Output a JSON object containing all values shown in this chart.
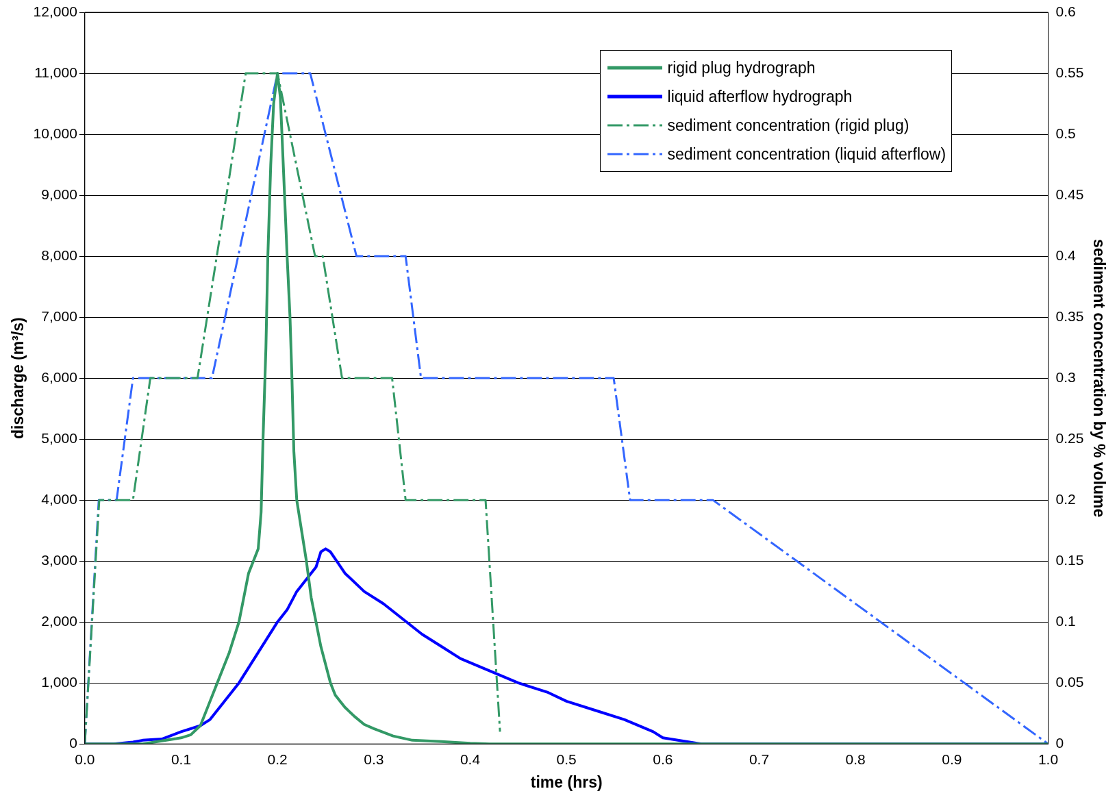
{
  "chart_data": {
    "type": "line",
    "xlabel": "time (hrs)",
    "ylabel": "discharge (m³/s)",
    "y2label": "sediment concentration by % volume",
    "xlim": [
      0,
      1
    ],
    "xticks": [
      {
        "value": 0,
        "label": "0.0"
      },
      {
        "value": 0.1,
        "label": "0.1"
      },
      {
        "value": 0.2,
        "label": "0.2"
      },
      {
        "value": 0.3,
        "label": "0.3"
      },
      {
        "value": 0.4,
        "label": "0.4"
      },
      {
        "value": 0.5,
        "label": "0.5"
      },
      {
        "value": 0.6,
        "label": "0.6"
      },
      {
        "value": 0.7,
        "label": "0.7"
      },
      {
        "value": 0.8,
        "label": "0.8"
      },
      {
        "value": 0.9,
        "label": "0.9"
      },
      {
        "value": 1,
        "label": "1.0"
      }
    ],
    "ylim": [
      0,
      12000
    ],
    "yticks": [
      {
        "value": 0,
        "label": "0"
      },
      {
        "value": 1000,
        "label": "1,000"
      },
      {
        "value": 2000,
        "label": "2,000"
      },
      {
        "value": 3000,
        "label": "3,000"
      },
      {
        "value": 4000,
        "label": "4,000"
      },
      {
        "value": 5000,
        "label": "5,000"
      },
      {
        "value": 6000,
        "label": "6,000"
      },
      {
        "value": 7000,
        "label": "7,000"
      },
      {
        "value": 8000,
        "label": "8,000"
      },
      {
        "value": 9000,
        "label": "9,000"
      },
      {
        "value": 10000,
        "label": "10,000"
      },
      {
        "value": 11000,
        "label": "11,000"
      },
      {
        "value": 12000,
        "label": "12,000"
      }
    ],
    "y2lim": [
      0,
      0.6
    ],
    "y2ticks": [
      0,
      0.05,
      0.1,
      0.15,
      0.2,
      0.25,
      0.3,
      0.35,
      0.4,
      0.45,
      0.5,
      0.55,
      0.6
    ],
    "grid": "y",
    "legend": "top right",
    "marker": "none",
    "series": [
      {
        "name": "rigid plug hydrograph",
        "color": "#339966",
        "line_style": "solid",
        "x": [
          0,
          0.06,
          0.08,
          0.1,
          0.11,
          0.12,
          0.13,
          0.14,
          0.15,
          0.16,
          0.165,
          0.17,
          0.175,
          0.18,
          0.183,
          0.185,
          0.188,
          0.19,
          0.193,
          0.196,
          0.2,
          0.203,
          0.206,
          0.21,
          0.213,
          0.215,
          0.217,
          0.22,
          0.225,
          0.23,
          0.235,
          0.24,
          0.245,
          0.25,
          0.255,
          0.26,
          0.27,
          0.28,
          0.29,
          0.3,
          0.32,
          0.34,
          0.37,
          0.4,
          0.42,
          1
        ],
        "values": [
          0,
          0,
          50,
          100,
          150,
          300,
          700,
          1100,
          1500,
          2000,
          2400,
          2800,
          3000,
          3200,
          3800,
          5000,
          6500,
          8000,
          9500,
          10500,
          11000,
          10600,
          9500,
          8000,
          7000,
          6000,
          4800,
          4000,
          3500,
          3000,
          2400,
          2000,
          1600,
          1300,
          1000,
          800,
          600,
          450,
          320,
          250,
          130,
          60,
          40,
          10,
          0,
          0
        ]
      },
      {
        "name": "liquid afterflow hydrograph",
        "color": "#0000ff",
        "line_style": "solid",
        "x": [
          0,
          0.03,
          0.05,
          0.06,
          0.08,
          0.1,
          0.12,
          0.13,
          0.14,
          0.16,
          0.18,
          0.2,
          0.21,
          0.22,
          0.24,
          0.245,
          0.25,
          0.255,
          0.27,
          0.29,
          0.31,
          0.35,
          0.37,
          0.39,
          0.42,
          0.45,
          0.48,
          0.5,
          0.53,
          0.56,
          0.59,
          0.6,
          0.62,
          0.64,
          1
        ],
        "values": [
          0,
          0,
          30,
          60,
          80,
          200,
          300,
          400,
          600,
          1000,
          1500,
          2000,
          2200,
          2500,
          2900,
          3150,
          3200,
          3150,
          2800,
          2500,
          2300,
          1800,
          1600,
          1400,
          1200,
          1000,
          850,
          700,
          550,
          400,
          200,
          100,
          50,
          0,
          0
        ]
      },
      {
        "name": "sediment concentration (rigid plug)",
        "color": "#339966",
        "axis": "y2",
        "line_style": "dashdot",
        "x": [
          0,
          0.015,
          0.05,
          0.068,
          0.117,
          0.167,
          0.2,
          0.239,
          0.247,
          0.267,
          0.319,
          0.333,
          0.416,
          0.431
        ],
        "values": [
          0,
          0.2,
          0.2,
          0.3,
          0.3,
          0.55,
          0.55,
          0.4,
          0.4,
          0.3,
          0.3,
          0.2,
          0.2,
          0.01
        ]
      },
      {
        "name": "sediment concentration (liquid afterflow)",
        "color": "#3366ff",
        "axis": "y2",
        "line_style": "dashdot",
        "x": [
          0,
          0.0145,
          0.033,
          0.05,
          0.132,
          0.2,
          0.234,
          0.282,
          0.333,
          0.349,
          0.549,
          0.566,
          0.652,
          1
        ],
        "values": [
          0,
          0.2,
          0.2,
          0.3,
          0.3,
          0.55,
          0.55,
          0.4,
          0.4,
          0.3,
          0.3,
          0.2,
          0.2,
          0
        ]
      }
    ]
  }
}
